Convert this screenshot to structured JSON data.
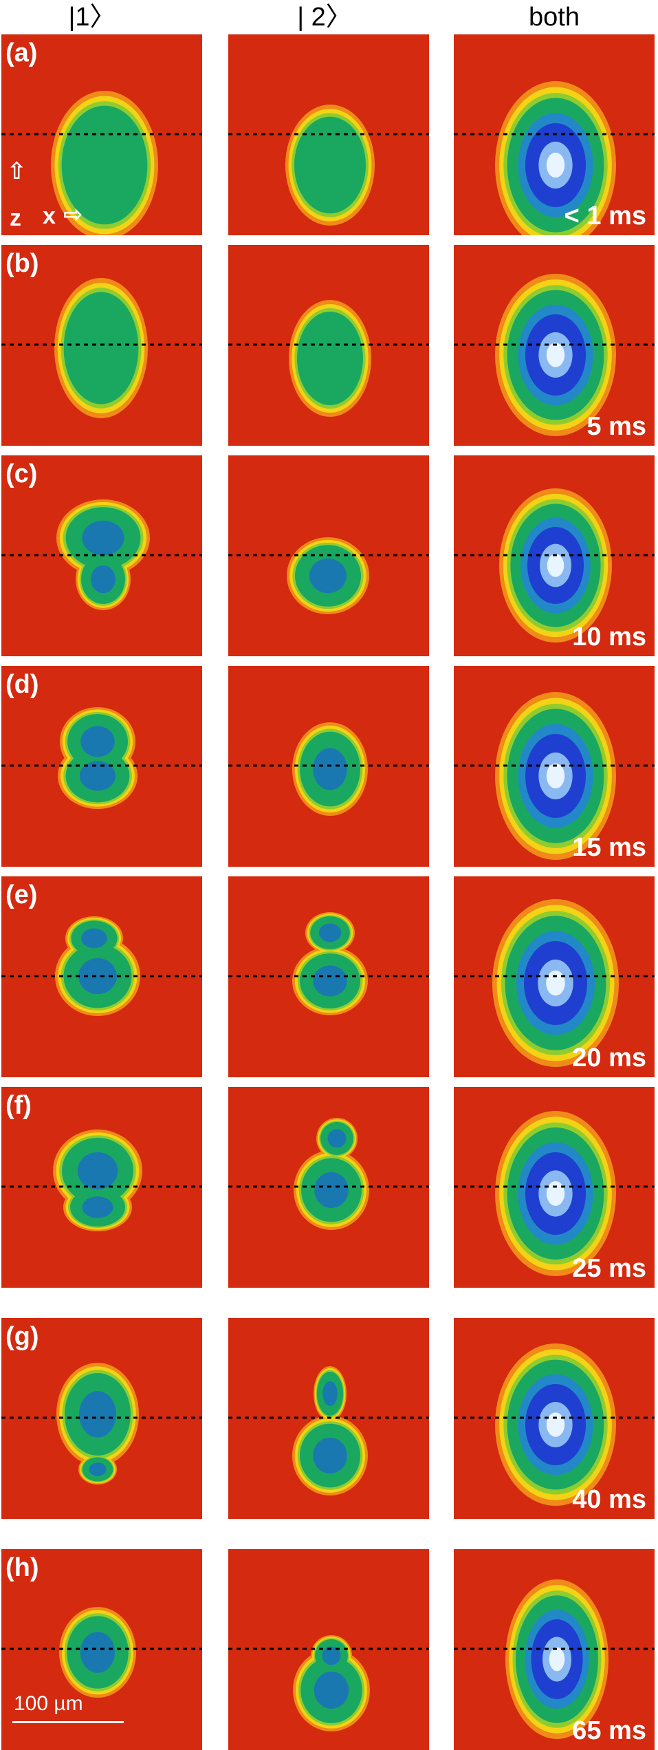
{
  "columns": [
    "|1〉",
    "| 2〉",
    "both"
  ],
  "rows": [
    {
      "letter": "(a)",
      "time": "< 1 ms"
    },
    {
      "letter": "(b)",
      "time": "5 ms"
    },
    {
      "letter": "(c)",
      "time": "10 ms"
    },
    {
      "letter": "(d)",
      "time": "15 ms"
    },
    {
      "letter": "(e)",
      "time": "20 ms"
    },
    {
      "letter": "(f)",
      "time": "25 ms"
    },
    {
      "letter": "(g)",
      "time": "40 ms"
    },
    {
      "letter": "(h)",
      "time": "65 ms"
    }
  ],
  "axes": {
    "z_label": "z",
    "x_label": "x"
  },
  "scale_bar": {
    "label": "100 µm"
  },
  "colors": {
    "background": "#d42a10",
    "outer_ring": "#f3d315",
    "middle": "#1aa860",
    "inner": "#1f3fd0",
    "core": "#e8f4ff",
    "label": "#ffffff",
    "dashed_line": "#000000"
  }
}
